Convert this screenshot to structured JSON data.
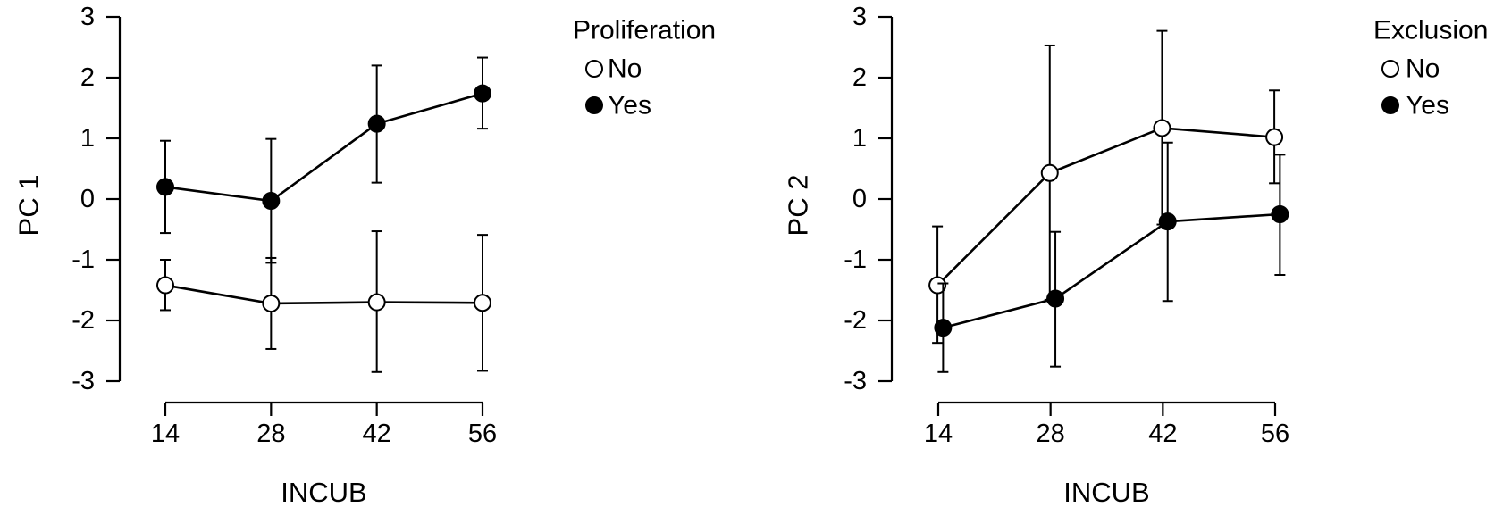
{
  "chart_data": [
    {
      "type": "line",
      "xlabel": "INCUB",
      "ylabel": "PC 1",
      "ylim": [
        -3,
        3
      ],
      "x_ticks": [
        14,
        28,
        42,
        56
      ],
      "y_ticks": [
        -3,
        -2,
        -1,
        0,
        1,
        2,
        3
      ],
      "y_tick_labels": [
        "-3",
        "-2",
        "-1",
        "0",
        "1",
        "2",
        "3"
      ],
      "legend": {
        "title": "Proliferation",
        "position": "top-right"
      },
      "series": [
        {
          "name": "No",
          "marker": "open-circle",
          "color": "#ffffff",
          "x": [
            14,
            28,
            42,
            56
          ],
          "y": [
            -1.42,
            -1.72,
            -1.7,
            -1.71
          ],
          "err_low": [
            -1.83,
            -2.47,
            -2.85,
            -2.83
          ],
          "err_high": [
            -1.0,
            -0.97,
            -0.53,
            -0.59
          ]
        },
        {
          "name": "Yes",
          "marker": "filled-circle",
          "color": "#000000",
          "x": [
            14,
            28,
            42,
            56
          ],
          "y": [
            0.2,
            -0.03,
            1.24,
            1.74
          ],
          "err_low": [
            -0.56,
            -1.05,
            0.27,
            1.16
          ],
          "err_high": [
            0.96,
            0.99,
            2.2,
            2.33
          ]
        }
      ]
    },
    {
      "type": "line",
      "xlabel": "INCUB",
      "ylabel": "PC 2",
      "ylim": [
        -3,
        3
      ],
      "x_ticks": [
        14,
        28,
        42,
        56
      ],
      "y_ticks": [
        -3,
        -2,
        -1,
        0,
        1,
        2,
        3
      ],
      "y_tick_labels": [
        "-3",
        "-2",
        "-1",
        "0",
        "1",
        "2",
        "3"
      ],
      "legend": {
        "title": "Exclusion",
        "position": "top-right"
      },
      "series": [
        {
          "name": "No",
          "marker": "open-circle",
          "color": "#ffffff",
          "x": [
            13.9,
            27.9,
            41.9,
            55.9
          ],
          "y": [
            -1.42,
            0.43,
            1.17,
            1.02
          ],
          "err_low": [
            -2.37,
            -1.66,
            -0.42,
            0.26
          ],
          "err_high": [
            -0.45,
            2.53,
            2.77,
            1.79
          ]
        },
        {
          "name": "Yes",
          "marker": "filled-circle",
          "color": "#000000",
          "x": [
            14.6,
            28.6,
            42.6,
            56.6
          ],
          "y": [
            -2.12,
            -1.64,
            -0.37,
            -0.25
          ],
          "err_low": [
            -2.85,
            -2.76,
            -1.68,
            -1.25
          ],
          "err_high": [
            -1.39,
            -0.54,
            0.93,
            0.73
          ]
        }
      ]
    }
  ]
}
